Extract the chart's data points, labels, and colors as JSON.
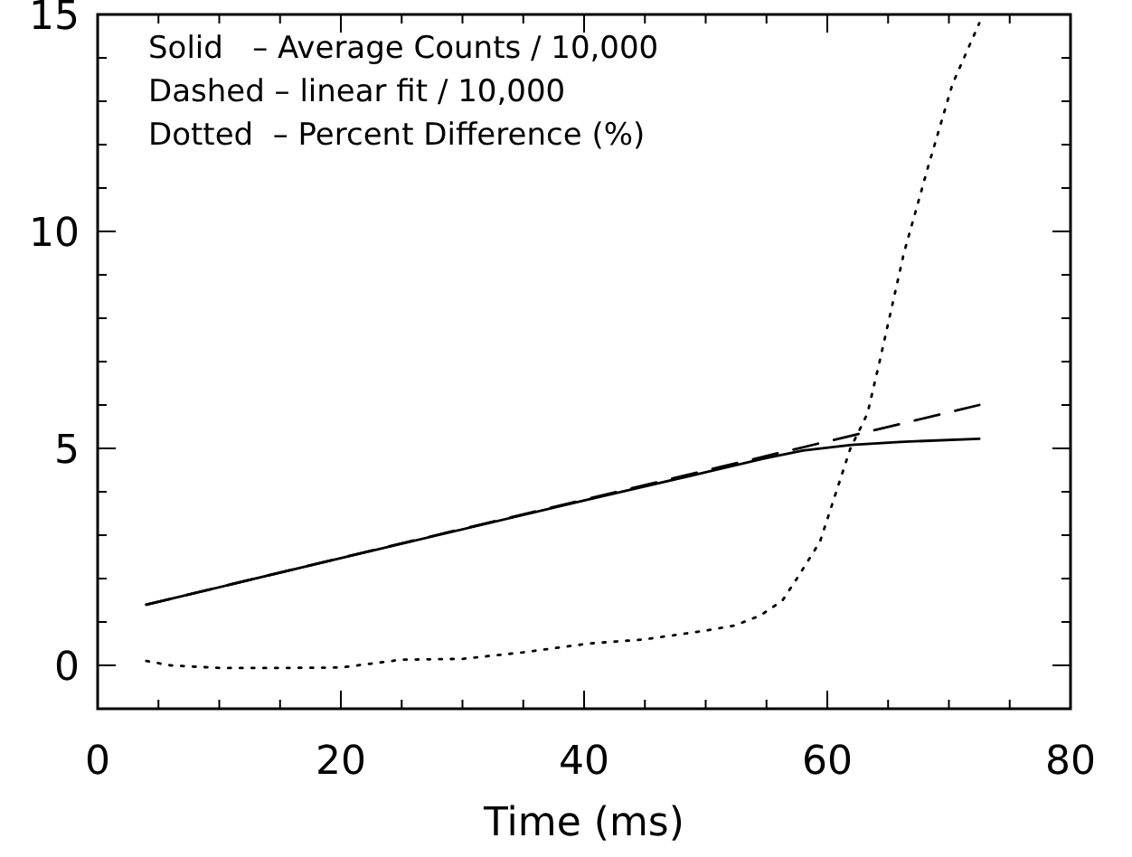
{
  "chart_data": {
    "type": "line",
    "xlabel": "Time (ms)",
    "annotations": [
      "Solid   – Average Counts / 10,000",
      "Dashed – linear fit / 10,000",
      "Dotted  – Percent Difference (%)"
    ],
    "xlim": [
      0,
      80
    ],
    "xticks": [
      0,
      {
        "value": 5,
        "label": null
      },
      {
        "value": 10,
        "label": null
      },
      {
        "value": 15,
        "label": null
      },
      20,
      {
        "value": 25,
        "label": null
      },
      {
        "value": 30,
        "label": null
      },
      {
        "value": 35,
        "label": null
      },
      40,
      {
        "value": 45,
        "label": null
      },
      {
        "value": 50,
        "label": null
      },
      {
        "value": 55,
        "label": null
      },
      60,
      {
        "value": 65,
        "label": null
      },
      {
        "value": 70,
        "label": null
      },
      {
        "value": 75,
        "label": null
      },
      80
    ],
    "ylim": [
      -1,
      15
    ],
    "yticks": [
      0,
      {
        "value": 1,
        "label": null
      },
      {
        "value": 2,
        "label": null
      },
      {
        "value": 3,
        "label": null
      },
      {
        "value": 4,
        "label": null
      },
      5,
      {
        "value": 6,
        "label": null
      },
      {
        "value": 7,
        "label": null
      },
      {
        "value": 8,
        "label": null
      },
      {
        "value": 9,
        "label": null
      },
      10,
      {
        "value": 11,
        "label": null
      },
      {
        "value": 12,
        "label": null
      },
      {
        "value": 13,
        "label": null
      },
      {
        "value": 14,
        "label": null
      },
      15
    ],
    "series": [
      {
        "color": "#000000",
        "line_style": "solid",
        "x": [
          4,
          20,
          40,
          50,
          55,
          58,
          62,
          66,
          72.5
        ],
        "values": [
          1.4,
          2.47,
          3.8,
          4.45,
          4.78,
          4.95,
          5.08,
          5.15,
          5.22
        ]
      },
      {
        "color": "#000000",
        "line_style": "dashed",
        "x": [
          4,
          72.5
        ],
        "values": [
          1.4,
          6.0
        ]
      },
      {
        "color": "#000000",
        "line_style": "dotted",
        "x": [
          4,
          6,
          10,
          15,
          20,
          25,
          30,
          35,
          40.3,
          45,
          50,
          52.4,
          54.5,
          56.3,
          57.5,
          59.4,
          61.9,
          63.3,
          64.3,
          66.3,
          68.3,
          70.3,
          72.5
        ],
        "values": [
          0.1,
          0.0,
          -0.06,
          -0.06,
          -0.05,
          0.13,
          0.15,
          0.3,
          0.5,
          0.6,
          0.8,
          0.92,
          1.15,
          1.49,
          2.0,
          2.85,
          5.0,
          5.8,
          7.0,
          9.5,
          11.5,
          13.4,
          14.8
        ]
      }
    ]
  }
}
